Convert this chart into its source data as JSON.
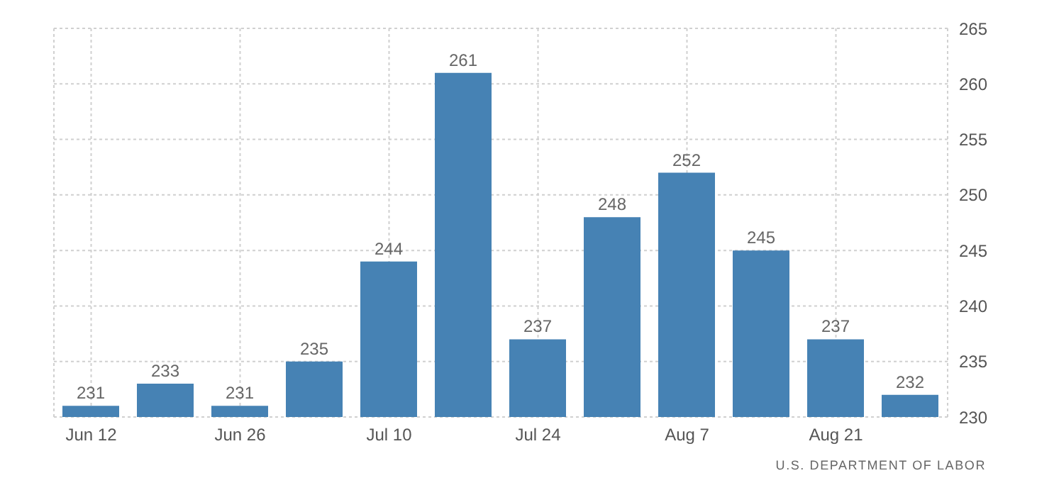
{
  "chart_data": {
    "type": "bar",
    "categories": [
      "Jun 12",
      null,
      "Jun 26",
      null,
      "Jul 10",
      null,
      "Jul 24",
      null,
      "Aug 7",
      null,
      "Aug 21",
      null
    ],
    "values": [
      231,
      233,
      231,
      235,
      244,
      261,
      237,
      248,
      252,
      245,
      237,
      232
    ],
    "color": "#4682b4",
    "ylim": [
      230,
      265
    ],
    "yticks": [
      230,
      235,
      240,
      245,
      250,
      255,
      260,
      265
    ],
    "grid": true,
    "data_labels": true,
    "annotations": [
      "U.S. DEPARTMENT OF LABOR"
    ]
  }
}
